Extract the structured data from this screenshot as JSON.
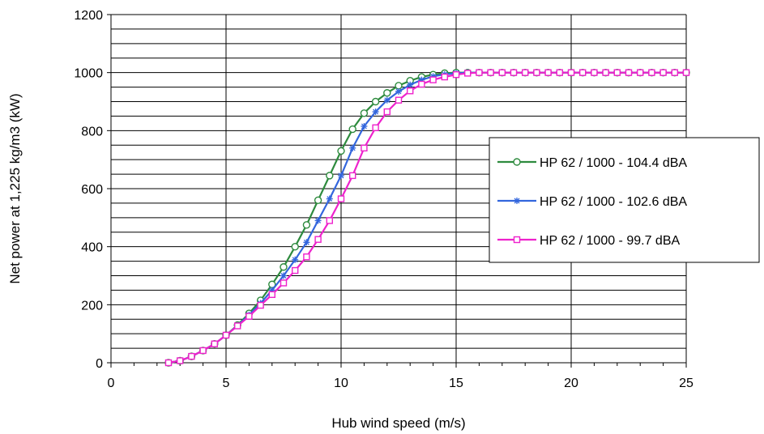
{
  "chart_data": {
    "type": "line",
    "title": "",
    "xlabel": "Hub wind speed (m/s)",
    "ylabel": "Net power at 1,225 kg/m3 (kW)",
    "xlim": [
      0,
      25
    ],
    "ylim": [
      0,
      1200
    ],
    "x_ticks": [
      "0",
      "5",
      "10",
      "15",
      "20",
      "25"
    ],
    "y_ticks": [
      "0",
      "200",
      "400",
      "600",
      "800",
      "1000",
      "1200"
    ],
    "grid": true,
    "legend_position": "right",
    "x": [
      2.5,
      3,
      3.5,
      4,
      4.5,
      5,
      5.5,
      6,
      6.5,
      7,
      7.5,
      8,
      8.5,
      9,
      9.5,
      10,
      10.5,
      11,
      11.5,
      12,
      12.5,
      13,
      13.5,
      14,
      14.5,
      15,
      15.5,
      16,
      16.5,
      17,
      17.5,
      18,
      18.5,
      19,
      19.5,
      20,
      20.5,
      21,
      21.5,
      22,
      22.5,
      23,
      23.5,
      24,
      24.5,
      25
    ],
    "series": [
      {
        "name": "HP 62 / 1000 - 104.4 dBA",
        "color": "#2e8b3e",
        "marker": "circle",
        "values": [
          0,
          7,
          22,
          42,
          65,
          95,
          130,
          170,
          215,
          270,
          330,
          400,
          475,
          560,
          645,
          730,
          805,
          860,
          900,
          930,
          955,
          972,
          985,
          993,
          998,
          1000,
          1000,
          1000,
          1000,
          1000,
          1000,
          1000,
          1000,
          1000,
          1000,
          1000,
          1000,
          1000,
          1000,
          1000,
          1000,
          1000,
          1000,
          1000,
          1000,
          1000
        ]
      },
      {
        "name": "HP 62 / 1000 - 102.6 dBA",
        "color": "#3366dd",
        "marker": "asterisk",
        "values": [
          0,
          7,
          22,
          42,
          65,
          95,
          128,
          165,
          205,
          250,
          300,
          355,
          415,
          490,
          565,
          645,
          740,
          815,
          865,
          905,
          935,
          958,
          975,
          987,
          994,
          998,
          1000,
          1000,
          1000,
          1000,
          1000,
          1000,
          1000,
          1000,
          1000,
          1000,
          1000,
          1000,
          1000,
          1000,
          1000,
          1000,
          1000,
          1000,
          1000,
          1000
        ]
      },
      {
        "name": "HP 62 / 1000 - 99.7 dBA",
        "color": "#ee22cc",
        "marker": "square",
        "values": [
          0,
          7,
          22,
          42,
          65,
          95,
          127,
          160,
          198,
          235,
          275,
          318,
          365,
          425,
          490,
          565,
          645,
          740,
          810,
          865,
          905,
          937,
          960,
          975,
          985,
          993,
          998,
          1000,
          1000,
          1000,
          1000,
          1000,
          1000,
          1000,
          1000,
          1000,
          1000,
          1000,
          1000,
          1000,
          1000,
          1000,
          1000,
          1000,
          1000,
          1000
        ]
      }
    ]
  }
}
